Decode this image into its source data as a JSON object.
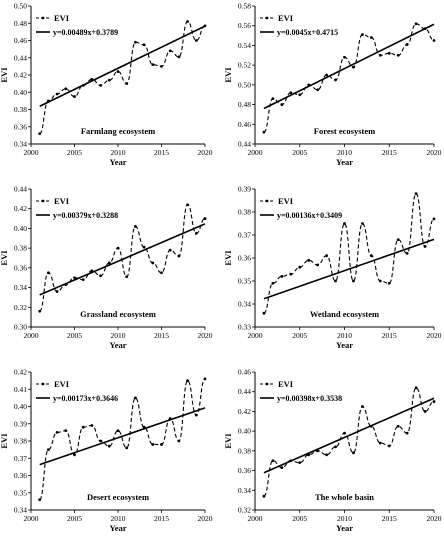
{
  "chart_data": [
    {
      "type": "line",
      "panel_label": "Farmlang ecosystem",
      "xlabel": "Year",
      "ylabel": "EVI",
      "xlim": [
        2000,
        2020
      ],
      "ylim": [
        0.34,
        0.5
      ],
      "xticks": [
        2000,
        2005,
        2010,
        2015,
        2020
      ],
      "yticks": [
        0.34,
        0.36,
        0.38,
        0.4,
        0.42,
        0.44,
        0.46,
        0.48,
        0.5
      ],
      "ytick_labels": [
        "0.34",
        "0.36",
        "0.38",
        "0.40",
        "0.42",
        "0.44",
        "0.46",
        "0.48",
        "0.50"
      ],
      "legend_label": "EVI",
      "trend_label": "y=0.00489x+0.3789",
      "trend": {
        "slope": 0.00489,
        "intercept": 0.3789
      },
      "series": [
        {
          "name": "EVI",
          "x": [
            2001,
            2002,
            2003,
            2004,
            2005,
            2006,
            2007,
            2008,
            2009,
            2010,
            2011,
            2012,
            2013,
            2014,
            2015,
            2016,
            2017,
            2018,
            2019,
            2020
          ],
          "values": [
            0.352,
            0.39,
            0.398,
            0.404,
            0.395,
            0.408,
            0.415,
            0.408,
            0.414,
            0.424,
            0.41,
            0.458,
            0.455,
            0.432,
            0.43,
            0.448,
            0.441,
            0.482,
            0.46,
            0.477
          ]
        }
      ]
    },
    {
      "type": "line",
      "panel_label": "Forest ecosystem",
      "xlabel": "Year",
      "ylabel": "EVI",
      "xlim": [
        2000,
        2020
      ],
      "ylim": [
        0.44,
        0.58
      ],
      "xticks": [
        2000,
        2005,
        2010,
        2015,
        2020
      ],
      "yticks": [
        0.44,
        0.46,
        0.48,
        0.5,
        0.52,
        0.54,
        0.56,
        0.58
      ],
      "ytick_labels": [
        "0.44",
        "0.46",
        "0.48",
        "0.50",
        "0.52",
        "0.54",
        "0.56",
        "0.58"
      ],
      "legend_label": "EVI",
      "trend_label": "y=0.0045x+0.4715",
      "trend": {
        "slope": 0.0045,
        "intercept": 0.4715
      },
      "series": [
        {
          "name": "EVI",
          "x": [
            2001,
            2002,
            2003,
            2004,
            2005,
            2006,
            2007,
            2008,
            2009,
            2010,
            2011,
            2012,
            2013,
            2014,
            2015,
            2016,
            2017,
            2018,
            2019,
            2020
          ],
          "values": [
            0.452,
            0.486,
            0.48,
            0.492,
            0.49,
            0.5,
            0.495,
            0.51,
            0.505,
            0.528,
            0.518,
            0.551,
            0.548,
            0.53,
            0.532,
            0.53,
            0.541,
            0.562,
            0.557,
            0.545
          ]
        }
      ]
    },
    {
      "type": "line",
      "panel_label": "Grassland ecosystem",
      "xlabel": "Year",
      "ylabel": "EVI",
      "xlim": [
        2000,
        2020
      ],
      "ylim": [
        0.3,
        0.44
      ],
      "xticks": [
        2000,
        2005,
        2010,
        2015,
        2020
      ],
      "yticks": [
        0.3,
        0.32,
        0.34,
        0.36,
        0.38,
        0.4,
        0.42,
        0.44
      ],
      "ytick_labels": [
        "0.30",
        "0.32",
        "0.34",
        "0.36",
        "0.38",
        "0.40",
        "0.42",
        "0.44"
      ],
      "legend_label": "EVI",
      "trend_label": "y=0.00379x+0.3288",
      "trend": {
        "slope": 0.00379,
        "intercept": 0.3288
      },
      "series": [
        {
          "name": "EVI",
          "x": [
            2001,
            2002,
            2003,
            2004,
            2005,
            2006,
            2007,
            2008,
            2009,
            2010,
            2011,
            2012,
            2013,
            2014,
            2015,
            2016,
            2017,
            2018,
            2019,
            2020
          ],
          "values": [
            0.316,
            0.355,
            0.336,
            0.343,
            0.35,
            0.348,
            0.357,
            0.352,
            0.365,
            0.38,
            0.351,
            0.402,
            0.381,
            0.365,
            0.355,
            0.378,
            0.372,
            0.424,
            0.395,
            0.41
          ]
        }
      ]
    },
    {
      "type": "line",
      "panel_label": "Wetland ecosystem",
      "xlabel": "Year",
      "ylabel": "EVI",
      "xlim": [
        2000,
        2020
      ],
      "ylim": [
        0.33,
        0.39
      ],
      "xticks": [
        2000,
        2005,
        2010,
        2015,
        2020
      ],
      "yticks": [
        0.33,
        0.34,
        0.35,
        0.36,
        0.37,
        0.38,
        0.39
      ],
      "ytick_labels": [
        "0.33",
        "0.34",
        "0.35",
        "0.36",
        "0.37",
        "0.38",
        "0.39"
      ],
      "legend_label": "EVI",
      "trend_label": "y=0.00136x+0.3409",
      "trend": {
        "slope": 0.00136,
        "intercept": 0.3409
      },
      "series": [
        {
          "name": "EVI",
          "x": [
            2001,
            2002,
            2003,
            2004,
            2005,
            2006,
            2007,
            2008,
            2009,
            2010,
            2011,
            2012,
            2013,
            2014,
            2015,
            2016,
            2017,
            2018,
            2019,
            2020
          ],
          "values": [
            0.336,
            0.349,
            0.352,
            0.353,
            0.356,
            0.359,
            0.357,
            0.361,
            0.35,
            0.375,
            0.35,
            0.375,
            0.361,
            0.35,
            0.349,
            0.368,
            0.362,
            0.388,
            0.365,
            0.377
          ]
        }
      ]
    },
    {
      "type": "line",
      "panel_label": "Desert ecosystem",
      "xlabel": "Year",
      "ylabel": "EVI",
      "xlim": [
        2000,
        2020
      ],
      "ylim": [
        0.34,
        0.42
      ],
      "xticks": [
        2000,
        2005,
        2010,
        2015,
        2020
      ],
      "yticks": [
        0.34,
        0.35,
        0.36,
        0.37,
        0.38,
        0.39,
        0.4,
        0.41,
        0.42
      ],
      "ytick_labels": [
        "0.34",
        "0.35",
        "0.36",
        "0.37",
        "0.38",
        "0.39",
        "0.40",
        "0.41",
        "0.42"
      ],
      "legend_label": "EVI",
      "trend_label": "y=0.00173x+0.3646",
      "trend": {
        "slope": 0.00173,
        "intercept": 0.3646
      },
      "series": [
        {
          "name": "EVI",
          "x": [
            2001,
            2002,
            2003,
            2004,
            2005,
            2006,
            2007,
            2008,
            2009,
            2010,
            2011,
            2012,
            2013,
            2014,
            2015,
            2016,
            2017,
            2018,
            2019,
            2020
          ],
          "values": [
            0.346,
            0.375,
            0.385,
            0.386,
            0.372,
            0.388,
            0.389,
            0.38,
            0.377,
            0.386,
            0.376,
            0.405,
            0.388,
            0.378,
            0.378,
            0.393,
            0.38,
            0.415,
            0.395,
            0.416
          ]
        }
      ]
    },
    {
      "type": "line",
      "panel_label": "The whole basin",
      "xlabel": "Year",
      "ylabel": "EVI",
      "xlim": [
        2000,
        2020
      ],
      "ylim": [
        0.32,
        0.46
      ],
      "xticks": [
        2000,
        2005,
        2010,
        2015,
        2020
      ],
      "yticks": [
        0.32,
        0.34,
        0.36,
        0.38,
        0.4,
        0.42,
        0.44,
        0.46
      ],
      "ytick_labels": [
        "0.32",
        "0.34",
        "0.36",
        "0.38",
        "0.40",
        "0.42",
        "0.44",
        "0.46"
      ],
      "legend_label": "EVI",
      "trend_label": "y=0.00398x+0.3538",
      "trend": {
        "slope": 0.00398,
        "intercept": 0.3538
      },
      "series": [
        {
          "name": "EVI",
          "x": [
            2001,
            2002,
            2003,
            2004,
            2005,
            2006,
            2007,
            2008,
            2009,
            2010,
            2011,
            2012,
            2013,
            2014,
            2015,
            2016,
            2017,
            2018,
            2019,
            2020
          ],
          "values": [
            0.334,
            0.37,
            0.363,
            0.37,
            0.368,
            0.376,
            0.38,
            0.376,
            0.384,
            0.398,
            0.378,
            0.425,
            0.405,
            0.388,
            0.385,
            0.405,
            0.398,
            0.444,
            0.42,
            0.43
          ]
        }
      ]
    }
  ]
}
